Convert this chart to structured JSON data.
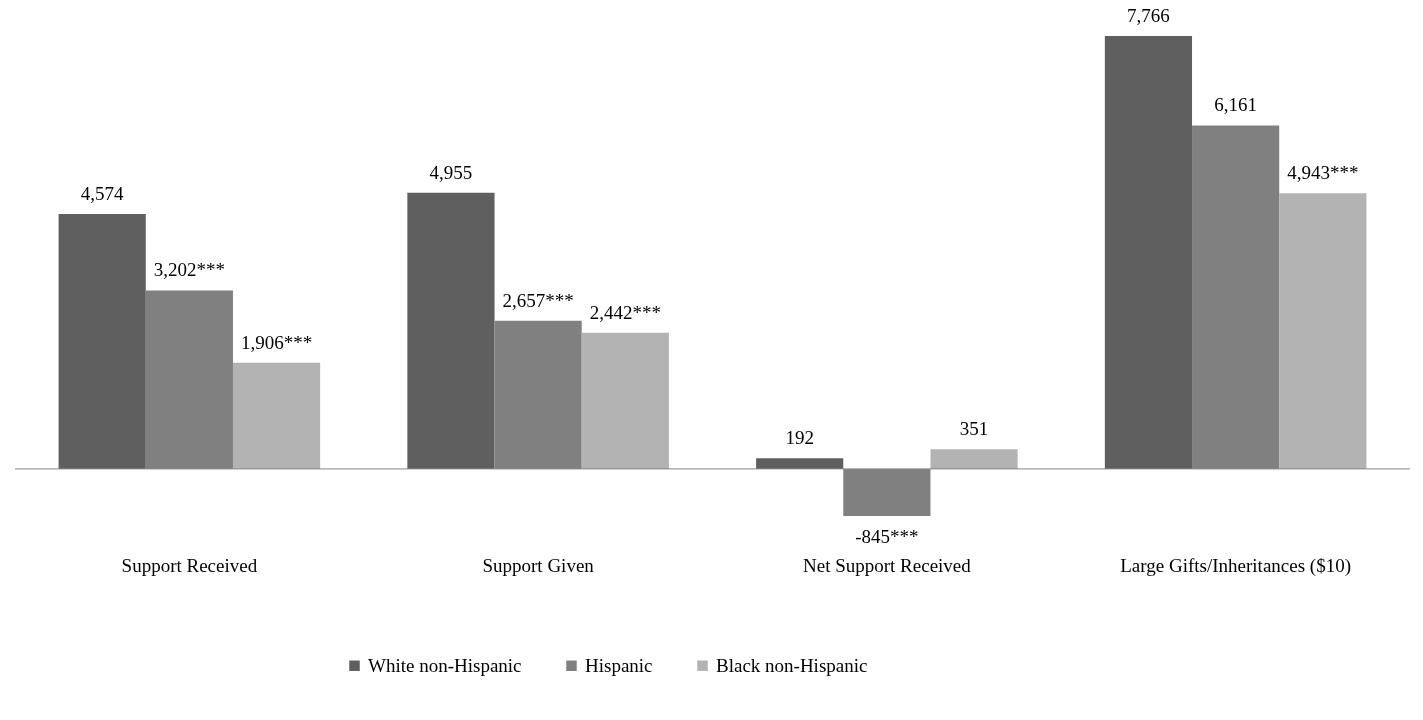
{
  "chart_data": {
    "type": "bar",
    "categories": [
      "Support Received",
      "Support Given",
      "Net Support Received",
      "Large Gifts/Inheritances ($10)"
    ],
    "series": [
      {
        "name": "White non-Hispanic",
        "color": "#5f5f5f",
        "values": [
          4574,
          4955,
          192,
          7766
        ],
        "value_labels": [
          "4,574",
          "4,955",
          "192",
          "7,766"
        ]
      },
      {
        "name": "Hispanic",
        "color": "#808080",
        "values": [
          3202,
          2657,
          -845,
          6161
        ],
        "value_labels": [
          "3,202***",
          "2,657***",
          "-845***",
          "6,161"
        ]
      },
      {
        "name": "Black non-Hispanic",
        "color": "#b3b3b3",
        "values": [
          1906,
          2442,
          351,
          4943
        ],
        "value_labels": [
          "1,906***",
          "2,442***",
          "351",
          "4,943***"
        ]
      }
    ],
    "grid": false,
    "legend": "bottom"
  }
}
